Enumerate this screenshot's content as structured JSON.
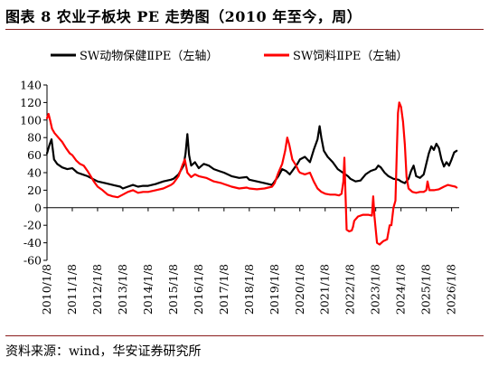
{
  "title": "图表 8 农业子板块 PE 走势图（2010 年至今，周）",
  "source": "资料来源：wind，华安证券研究所",
  "chart_data": {
    "type": "line",
    "title": "图表 8 农业子板块 PE 走势图（2010 年至今，周）",
    "xlabel": "",
    "ylabel": "",
    "ylim": [
      -60,
      140
    ],
    "yticks": [
      -60,
      -40,
      -20,
      0,
      20,
      40,
      60,
      80,
      100,
      120,
      140
    ],
    "xlim": [
      2010.0,
      2026.3
    ],
    "xticks": [
      "2010/1/8",
      "2011/1/8",
      "2012/1/8",
      "2013/1/8",
      "2014/1/8",
      "2015/1/8",
      "2016/1/8",
      "2017/1/8",
      "2018/1/8",
      "2019/1/8",
      "2020/1/8",
      "2021/1/8",
      "2022/1/8",
      "2023/1/8",
      "2024/1/8",
      "2025/1/8",
      "2026/1/8"
    ],
    "grid": false,
    "legend": "top",
    "colors": {
      "series1": "#000000",
      "series2": "#ff0000"
    },
    "series": [
      {
        "name": "SW动物保健ⅡPE（左轴）",
        "color": "#000000",
        "points": [
          [
            2010.0,
            62
          ],
          [
            2010.1,
            72
          ],
          [
            2010.18,
            78
          ],
          [
            2010.28,
            55
          ],
          [
            2010.4,
            50
          ],
          [
            2010.6,
            46
          ],
          [
            2010.8,
            44
          ],
          [
            2011.0,
            45
          ],
          [
            2011.2,
            40
          ],
          [
            2011.4,
            38
          ],
          [
            2011.6,
            36
          ],
          [
            2011.8,
            33
          ],
          [
            2012.0,
            30
          ],
          [
            2012.3,
            28
          ],
          [
            2012.6,
            26
          ],
          [
            2012.9,
            24
          ],
          [
            2013.0,
            22
          ],
          [
            2013.2,
            24
          ],
          [
            2013.4,
            26
          ],
          [
            2013.6,
            24
          ],
          [
            2013.8,
            25
          ],
          [
            2014.0,
            25
          ],
          [
            2014.3,
            27
          ],
          [
            2014.6,
            30
          ],
          [
            2014.9,
            32
          ],
          [
            2015.0,
            33
          ],
          [
            2015.2,
            38
          ],
          [
            2015.4,
            48
          ],
          [
            2015.48,
            62
          ],
          [
            2015.55,
            84
          ],
          [
            2015.62,
            60
          ],
          [
            2015.7,
            48
          ],
          [
            2015.85,
            52
          ],
          [
            2016.0,
            45
          ],
          [
            2016.2,
            50
          ],
          [
            2016.4,
            48
          ],
          [
            2016.6,
            44
          ],
          [
            2016.8,
            42
          ],
          [
            2017.0,
            40
          ],
          [
            2017.3,
            36
          ],
          [
            2017.6,
            34
          ],
          [
            2017.9,
            35
          ],
          [
            2018.0,
            32
          ],
          [
            2018.3,
            30
          ],
          [
            2018.6,
            28
          ],
          [
            2018.9,
            26
          ],
          [
            2019.0,
            30
          ],
          [
            2019.15,
            36
          ],
          [
            2019.3,
            44
          ],
          [
            2019.45,
            42
          ],
          [
            2019.6,
            38
          ],
          [
            2019.75,
            44
          ],
          [
            2019.9,
            50
          ],
          [
            2020.0,
            55
          ],
          [
            2020.2,
            58
          ],
          [
            2020.4,
            52
          ],
          [
            2020.55,
            66
          ],
          [
            2020.7,
            78
          ],
          [
            2020.78,
            93
          ],
          [
            2020.85,
            80
          ],
          [
            2020.95,
            65
          ],
          [
            2021.1,
            58
          ],
          [
            2021.3,
            52
          ],
          [
            2021.5,
            44
          ],
          [
            2021.7,
            40
          ],
          [
            2021.9,
            36
          ],
          [
            2022.0,
            33
          ],
          [
            2022.2,
            30
          ],
          [
            2022.4,
            31
          ],
          [
            2022.6,
            38
          ],
          [
            2022.8,
            42
          ],
          [
            2023.0,
            44
          ],
          [
            2023.1,
            48
          ],
          [
            2023.2,
            46
          ],
          [
            2023.35,
            40
          ],
          [
            2023.5,
            36
          ],
          [
            2023.7,
            33
          ],
          [
            2023.9,
            32
          ],
          [
            2024.0,
            30
          ],
          [
            2024.15,
            28
          ],
          [
            2024.3,
            33
          ],
          [
            2024.4,
            42
          ],
          [
            2024.5,
            48
          ],
          [
            2024.6,
            36
          ],
          [
            2024.75,
            34
          ],
          [
            2024.9,
            38
          ],
          [
            2025.0,
            50
          ],
          [
            2025.1,
            62
          ],
          [
            2025.2,
            70
          ],
          [
            2025.3,
            66
          ],
          [
            2025.4,
            73
          ],
          [
            2025.5,
            68
          ],
          [
            2025.6,
            55
          ],
          [
            2025.7,
            47
          ],
          [
            2025.8,
            52
          ],
          [
            2025.9,
            48
          ],
          [
            2026.0,
            55
          ],
          [
            2026.1,
            63
          ],
          [
            2026.2,
            65
          ]
        ]
      },
      {
        "name": "SW饲料ⅡPE（左轴）",
        "color": "#ff0000",
        "points": [
          [
            2010.0,
            102
          ],
          [
            2010.06,
            107
          ],
          [
            2010.12,
            100
          ],
          [
            2010.2,
            90
          ],
          [
            2010.3,
            85
          ],
          [
            2010.45,
            80
          ],
          [
            2010.6,
            75
          ],
          [
            2010.75,
            68
          ],
          [
            2010.9,
            62
          ],
          [
            2011.0,
            60
          ],
          [
            2011.15,
            54
          ],
          [
            2011.3,
            50
          ],
          [
            2011.45,
            48
          ],
          [
            2011.6,
            42
          ],
          [
            2011.75,
            35
          ],
          [
            2011.85,
            30
          ],
          [
            2012.0,
            24
          ],
          [
            2012.2,
            20
          ],
          [
            2012.4,
            15
          ],
          [
            2012.6,
            13
          ],
          [
            2012.8,
            12
          ],
          [
            2013.0,
            15
          ],
          [
            2013.2,
            18
          ],
          [
            2013.4,
            20
          ],
          [
            2013.6,
            17
          ],
          [
            2013.8,
            18
          ],
          [
            2014.0,
            18
          ],
          [
            2014.3,
            20
          ],
          [
            2014.6,
            22
          ],
          [
            2014.9,
            26
          ],
          [
            2015.0,
            28
          ],
          [
            2015.2,
            36
          ],
          [
            2015.35,
            48
          ],
          [
            2015.45,
            55
          ],
          [
            2015.55,
            40
          ],
          [
            2015.7,
            35
          ],
          [
            2015.85,
            38
          ],
          [
            2016.0,
            36
          ],
          [
            2016.3,
            34
          ],
          [
            2016.6,
            30
          ],
          [
            2016.9,
            28
          ],
          [
            2017.0,
            27
          ],
          [
            2017.3,
            24
          ],
          [
            2017.6,
            22
          ],
          [
            2017.9,
            23
          ],
          [
            2018.0,
            22
          ],
          [
            2018.3,
            21
          ],
          [
            2018.6,
            22
          ],
          [
            2018.9,
            24
          ],
          [
            2019.0,
            28
          ],
          [
            2019.15,
            40
          ],
          [
            2019.3,
            50
          ],
          [
            2019.42,
            65
          ],
          [
            2019.5,
            80
          ],
          [
            2019.58,
            72
          ],
          [
            2019.7,
            55
          ],
          [
            2019.85,
            48
          ],
          [
            2019.95,
            42
          ],
          [
            2020.0,
            40
          ],
          [
            2020.2,
            38
          ],
          [
            2020.4,
            40
          ],
          [
            2020.55,
            30
          ],
          [
            2020.7,
            22
          ],
          [
            2020.85,
            18
          ],
          [
            2021.0,
            16
          ],
          [
            2021.2,
            15
          ],
          [
            2021.4,
            15
          ],
          [
            2021.55,
            14
          ],
          [
            2021.65,
            16
          ],
          [
            2021.72,
            30
          ],
          [
            2021.76,
            57
          ],
          [
            2021.8,
            20
          ],
          [
            2021.85,
            -25
          ],
          [
            2021.95,
            -27
          ],
          [
            2022.05,
            -26
          ],
          [
            2022.1,
            -22
          ],
          [
            2022.15,
            -15
          ],
          [
            2022.3,
            -10
          ],
          [
            2022.5,
            -8
          ],
          [
            2022.7,
            -8
          ],
          [
            2022.85,
            -9
          ],
          [
            2022.9,
            13
          ],
          [
            2022.95,
            -10
          ],
          [
            2023.05,
            -40
          ],
          [
            2023.15,
            -42
          ],
          [
            2023.3,
            -38
          ],
          [
            2023.45,
            -36
          ],
          [
            2023.55,
            -20
          ],
          [
            2023.62,
            -20
          ],
          [
            2023.7,
            0
          ],
          [
            2023.78,
            8
          ],
          [
            2023.83,
            60
          ],
          [
            2023.88,
            108
          ],
          [
            2023.93,
            120
          ],
          [
            2024.0,
            115
          ],
          [
            2024.08,
            98
          ],
          [
            2024.15,
            72
          ],
          [
            2024.22,
            35
          ],
          [
            2024.3,
            22
          ],
          [
            2024.45,
            18
          ],
          [
            2024.6,
            17
          ],
          [
            2024.75,
            18
          ],
          [
            2024.9,
            18
          ],
          [
            2025.0,
            20
          ],
          [
            2025.05,
            30
          ],
          [
            2025.12,
            20
          ],
          [
            2025.3,
            20
          ],
          [
            2025.5,
            21
          ],
          [
            2025.7,
            24
          ],
          [
            2025.85,
            26
          ],
          [
            2026.0,
            25
          ],
          [
            2026.15,
            24
          ],
          [
            2026.2,
            23
          ]
        ]
      }
    ]
  }
}
